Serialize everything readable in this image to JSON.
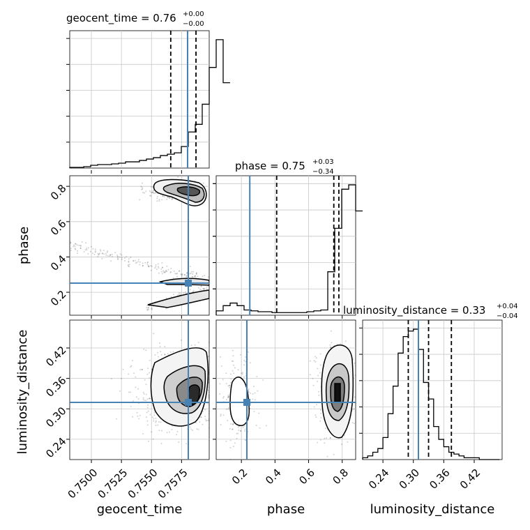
{
  "chart_data": {
    "type": "corner",
    "parameters": [
      "geocent_time",
      "phase",
      "luminosity_distance"
    ],
    "truths": {
      "geocent_time": 0.758,
      "phase": 0.25,
      "luminosity_distance": 0.31
    },
    "truth_color": "#4682b4",
    "panels": {
      "geocent_time": {
        "title_name": "geocent_time = 0.76",
        "title_sup": "+0.00",
        "title_sub": "−0.00",
        "xlim": [
          0.7482,
          0.7598
        ],
        "quantiles": [
          0.7566,
          0.758,
          0.7587
        ],
        "hist_edges_start": 0.7482,
        "hist_bin_width": 0.00058,
        "hist_counts": [
          1,
          1,
          2,
          4,
          5,
          5,
          6,
          7,
          9,
          9,
          11,
          13,
          15,
          18,
          20,
          22,
          31,
          52,
          63,
          92,
          145,
          185,
          123
        ],
        "xticks": [
          0.75,
          0.7525,
          0.755,
          0.7575
        ],
        "xtick_labels": [
          "0.7500",
          "0.7525",
          "0.7550",
          "0.7575"
        ],
        "xlabel": "geocent_time"
      },
      "phase": {
        "title_name": "phase = 0.75",
        "title_sup": "+0.03",
        "title_sub": "−0.34",
        "xlim": [
          0.05,
          0.88
        ],
        "quantiles": [
          0.41,
          0.75,
          0.78
        ],
        "hist_edges_start": 0.05,
        "hist_bin_width": 0.0415,
        "hist_counts": [
          5,
          11,
          14,
          11,
          6,
          5,
          4,
          4,
          3,
          3,
          3,
          3,
          3,
          4,
          5,
          6,
          50,
          100,
          145,
          150,
          120
        ],
        "xticks": [
          0.2,
          0.4,
          0.6,
          0.8
        ],
        "xtick_labels": [
          "0.2",
          "0.4",
          "0.6",
          "0.8"
        ],
        "yticks": [
          0.2,
          0.4,
          0.6,
          0.8
        ],
        "ytick_labels": [
          "0.2",
          "0.4",
          "0.6",
          "0.8"
        ],
        "ylim": [
          0.07,
          0.86
        ],
        "xlabel": "phase",
        "ylabel": "phase"
      },
      "luminosity_distance": {
        "title_name": "luminosity_distance = 0.33",
        "title_sup": "+0.04",
        "title_sub": "−0.04",
        "xlim": [
          0.2,
          0.475
        ],
        "quantiles": [
          0.29,
          0.33,
          0.375
        ],
        "hist_edges_start": 0.2,
        "hist_bin_width": 0.01,
        "hist_counts": [
          1,
          2,
          4,
          6,
          12,
          25,
          40,
          58,
          67,
          70,
          71,
          60,
          42,
          33,
          18,
          11,
          7,
          4,
          3,
          2,
          1,
          1,
          1,
          0,
          0,
          0,
          0
        ],
        "xticks": [
          0.24,
          0.3,
          0.36,
          0.42
        ],
        "xtick_labels": [
          "0.24",
          "0.30",
          "0.36",
          "0.42"
        ],
        "yticks": [
          0.24,
          0.3,
          0.36,
          0.42
        ],
        "ytick_labels": [
          "0.24",
          "0.30",
          "0.36",
          "0.42"
        ],
        "ylim": [
          0.2,
          0.475
        ],
        "xlabel": "luminosity_distance",
        "ylabel": "luminosity_distance"
      }
    },
    "grid": true
  }
}
